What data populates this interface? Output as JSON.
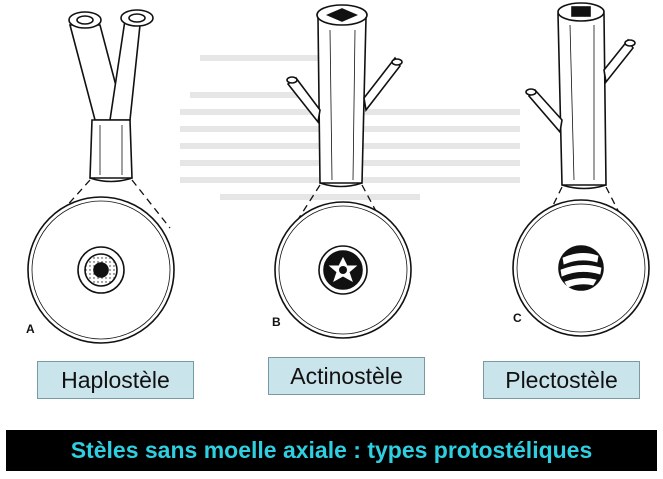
{
  "panels": [
    {
      "letter": "A",
      "label": "Haplostèle"
    },
    {
      "letter": "B",
      "label": "Actinostèle"
    },
    {
      "letter": "C",
      "label": "Plectostèle"
    }
  ],
  "banner": "Stèles sans moelle axiale : types protostéliques",
  "colors": {
    "label_bg": "#c9e4ea",
    "banner_bg": "#000000",
    "banner_text": "#2ecfe0",
    "ink": "#111111"
  }
}
